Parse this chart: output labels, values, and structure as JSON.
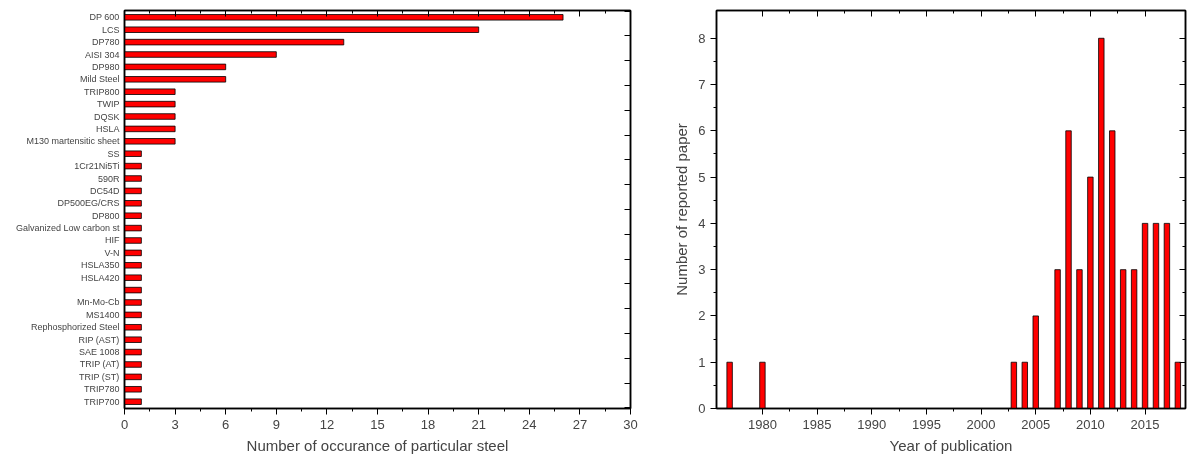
{
  "chart_data": [
    {
      "type": "bar",
      "orientation": "horizontal",
      "xlabel": "Number of occurance of particular steel",
      "color": "#ff0000",
      "categories": [
        "DP 600",
        "LCS",
        "DP780",
        "AISI 304",
        "DP980",
        "Mild Steel",
        "TRIP800",
        "TWIP",
        "DQSK",
        "HSLA",
        "M130 martensitic sheet",
        "SS",
        "1Cr21Ni5Ti",
        "590R",
        "DC54D",
        "DP500EG/CRS",
        "DP800",
        "Galvanized Low carbon st",
        "HIF",
        "V-N",
        "HSLA350",
        "HSLA420",
        null,
        "Mn-Mo-Cb",
        "MS1400",
        "Rephosphorized Steel",
        "RIP (AST)",
        "SAE 1008",
        "TRIP (AT)",
        "TRIP (ST)",
        "TRIP780",
        "TRIP700"
      ],
      "values": [
        26,
        21,
        13,
        9,
        6,
        6,
        3,
        3,
        3,
        3,
        3,
        1,
        1,
        1,
        1,
        1,
        1,
        1,
        1,
        1,
        1,
        1,
        1,
        1,
        1,
        1,
        1,
        1,
        1,
        1,
        1,
        1
      ],
      "xlim": [
        0,
        30
      ],
      "xticks": [
        0,
        3,
        6,
        9,
        12,
        15,
        18,
        21,
        24,
        27,
        30
      ]
    },
    {
      "type": "bar",
      "xlabel": "Year of publication",
      "ylabel": "Number of reported paper",
      "color": "#ff0000",
      "x": [
        1977,
        1980,
        2003,
        2004,
        2005,
        2007,
        2008,
        2009,
        2010,
        2011,
        2012,
        2013,
        2014,
        2015,
        2016,
        2017,
        2018
      ],
      "values": [
        1,
        1,
        1,
        1,
        2,
        3,
        6,
        3,
        5,
        8,
        6,
        3,
        3,
        4,
        4,
        4,
        1
      ],
      "xlim": [
        1975.8,
        2018.7
      ],
      "xticks": [
        1980,
        1985,
        1990,
        1995,
        2000,
        2005,
        2010,
        2015
      ],
      "ylim": [
        0,
        8.6
      ],
      "yticks": [
        0,
        1,
        2,
        3,
        4,
        5,
        6,
        7,
        8
      ]
    }
  ]
}
